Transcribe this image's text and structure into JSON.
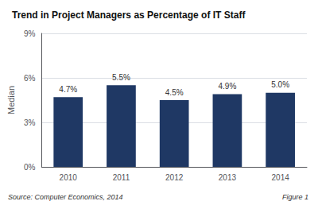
{
  "chart_data": {
    "type": "bar",
    "title": "Trend in Project Managers as Percentage of IT Staff",
    "categories": [
      "2010",
      "2011",
      "2012",
      "2013",
      "2014"
    ],
    "values": [
      4.7,
      5.5,
      4.5,
      4.9,
      5.0
    ],
    "value_labels": [
      "4.7%",
      "5.5%",
      "4.5%",
      "4.9%",
      "5.0%"
    ],
    "color": "#1F3864",
    "ylabel": "Median",
    "ylim": [
      0,
      9
    ],
    "yticks": [
      {
        "value": 0,
        "label": "0%"
      },
      {
        "value": 3,
        "label": "3%"
      },
      {
        "value": 6,
        "label": "6%"
      },
      {
        "value": 9,
        "label": "9%"
      }
    ],
    "grid": true,
    "data_labels": true,
    "annotations": [
      "Source: Computer Economics, 2014",
      "Figure 1"
    ]
  }
}
